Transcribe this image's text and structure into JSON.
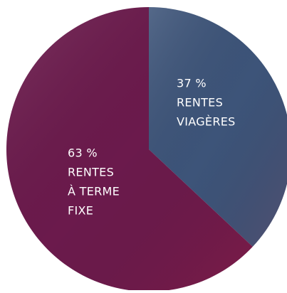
{
  "chart_data": {
    "type": "pie",
    "categories": [
      [
        "RENTES",
        "VIAGÈRES"
      ],
      [
        "RENTES",
        "À TERME",
        "FIXE"
      ]
    ],
    "values": [
      37,
      63
    ],
    "value_labels": [
      "37 %",
      "63 %"
    ],
    "colors": [
      "#3d5479",
      "#6b1a4c"
    ]
  }
}
